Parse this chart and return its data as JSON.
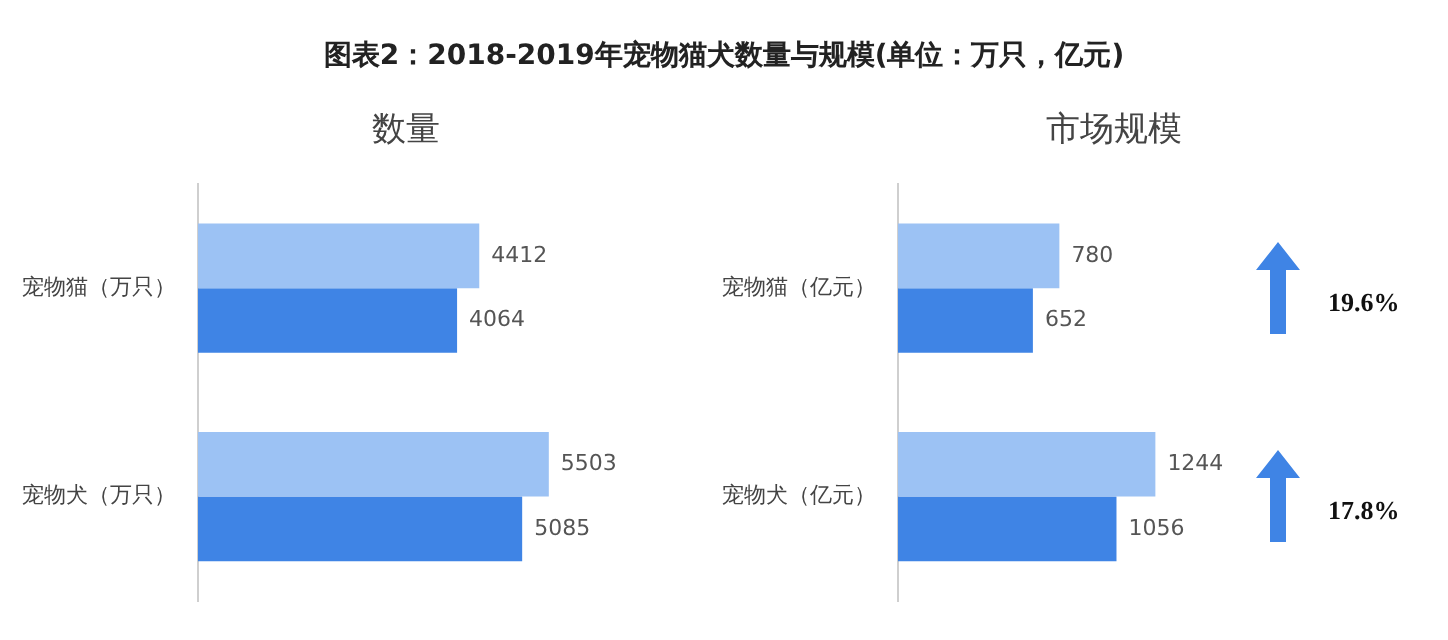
{
  "chart_data": [
    {
      "type": "bar",
      "orientation": "horizontal",
      "title": "图表2：2018-2019年宠物猫犬数量与规模(单位：万只，亿元)",
      "subtitle": "数量",
      "categories": [
        "宠物猫（万只）",
        "宠物犬（万只）"
      ],
      "series": [
        {
          "color": "#9cc2f4",
          "values": [
            4412,
            5503
          ]
        },
        {
          "color": "#3f84e5",
          "values": [
            4064,
            5085
          ]
        }
      ],
      "data_labels": true,
      "tick_labels": "y"
    },
    {
      "type": "bar",
      "orientation": "horizontal",
      "subtitle": "市场规模",
      "categories": [
        "宠物猫（亿元）",
        "宠物犬（亿元）"
      ],
      "series": [
        {
          "color": "#9cc2f4",
          "values": [
            780,
            1244
          ]
        },
        {
          "color": "#3f84e5",
          "values": [
            652,
            1056
          ]
        }
      ],
      "data_labels": true,
      "tick_labels": "y",
      "annotations": [
        "19.6%",
        "17.8%"
      ]
    }
  ]
}
